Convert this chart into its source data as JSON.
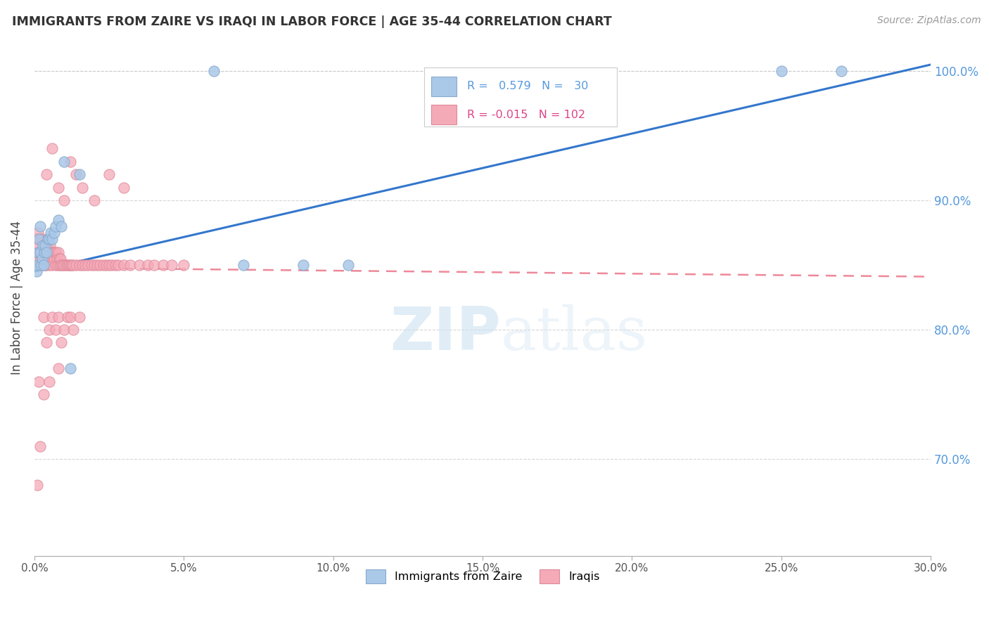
{
  "title": "IMMIGRANTS FROM ZAIRE VS IRAQI IN LABOR FORCE | AGE 35-44 CORRELATION CHART",
  "source": "Source: ZipAtlas.com",
  "ylabel": "In Labor Force | Age 35-44",
  "xlim": [
    0.0,
    0.3
  ],
  "ylim": [
    0.625,
    1.025
  ],
  "xtick_vals": [
    0.0,
    0.05,
    0.1,
    0.15,
    0.2,
    0.25,
    0.3
  ],
  "xtick_labels": [
    "0.0%",
    "5.0%",
    "10.0%",
    "15.0%",
    "20.0%",
    "25.0%",
    "30.0%"
  ],
  "ytick_vals": [
    0.7,
    0.8,
    0.9,
    1.0
  ],
  "ytick_labels_right": [
    "70.0%",
    "80.0%",
    "90.0%",
    "100.0%"
  ],
  "zaire_color": "#aac8e8",
  "iraqi_color": "#f5aab8",
  "zaire_edge_color": "#88aacc",
  "iraqi_edge_color": "#dd8899",
  "zaire_line_color": "#3377cc",
  "iraqi_line_color": "#ee8899",
  "right_axis_color": "#5599dd",
  "R_zaire": 0.579,
  "N_zaire": 30,
  "R_iraqi": -0.015,
  "N_iraqi": 102,
  "background_color": "#ffffff",
  "grid_color": "#cccccc",
  "watermark_color": "#ddeeff",
  "title_color": "#333333",
  "source_color": "#999999",
  "zaire_x": [
    0.0008,
    0.001,
    0.0012,
    0.0015,
    0.0018,
    0.002,
    0.0022,
    0.0025,
    0.0028,
    0.003,
    0.0032,
    0.0035,
    0.004,
    0.0045,
    0.005,
    0.0055,
    0.006,
    0.0065,
    0.007,
    0.008,
    0.009,
    0.01,
    0.012,
    0.015,
    0.06,
    0.07,
    0.09,
    0.105,
    0.25,
    0.27
  ],
  "zaire_y": [
    0.845,
    0.85,
    0.86,
    0.87,
    0.88,
    0.86,
    0.85,
    0.855,
    0.865,
    0.85,
    0.86,
    0.865,
    0.86,
    0.87,
    0.87,
    0.875,
    0.87,
    0.875,
    0.88,
    0.885,
    0.88,
    0.93,
    0.77,
    0.92,
    1.0,
    0.85,
    0.85,
    0.85,
    1.0,
    1.0
  ],
  "iraqi_x": [
    0.0005,
    0.0008,
    0.001,
    0.0012,
    0.0015,
    0.0015,
    0.0018,
    0.002,
    0.002,
    0.0022,
    0.0025,
    0.0025,
    0.0028,
    0.003,
    0.003,
    0.0032,
    0.0035,
    0.0035,
    0.0038,
    0.004,
    0.004,
    0.0042,
    0.0045,
    0.0045,
    0.0048,
    0.005,
    0.005,
    0.0052,
    0.0055,
    0.0058,
    0.006,
    0.0062,
    0.0065,
    0.0068,
    0.007,
    0.0072,
    0.0075,
    0.0078,
    0.008,
    0.0082,
    0.0085,
    0.0088,
    0.009,
    0.0095,
    0.01,
    0.0105,
    0.011,
    0.0115,
    0.012,
    0.0125,
    0.013,
    0.014,
    0.015,
    0.016,
    0.017,
    0.018,
    0.019,
    0.02,
    0.021,
    0.022,
    0.023,
    0.024,
    0.025,
    0.026,
    0.027,
    0.028,
    0.03,
    0.032,
    0.035,
    0.038,
    0.04,
    0.043,
    0.046,
    0.05,
    0.004,
    0.006,
    0.008,
    0.01,
    0.012,
    0.014,
    0.016,
    0.02,
    0.025,
    0.03,
    0.001,
    0.002,
    0.003,
    0.004,
    0.005,
    0.006,
    0.007,
    0.008,
    0.009,
    0.01,
    0.011,
    0.012,
    0.013,
    0.015,
    0.0015,
    0.003,
    0.005,
    0.008
  ],
  "iraqi_y": [
    0.855,
    0.87,
    0.86,
    0.875,
    0.85,
    0.865,
    0.86,
    0.85,
    0.87,
    0.855,
    0.86,
    0.87,
    0.85,
    0.86,
    0.865,
    0.855,
    0.85,
    0.865,
    0.86,
    0.85,
    0.86,
    0.865,
    0.855,
    0.87,
    0.86,
    0.85,
    0.86,
    0.865,
    0.855,
    0.86,
    0.85,
    0.86,
    0.855,
    0.86,
    0.85,
    0.86,
    0.855,
    0.85,
    0.86,
    0.855,
    0.85,
    0.855,
    0.85,
    0.85,
    0.85,
    0.85,
    0.85,
    0.85,
    0.85,
    0.85,
    0.85,
    0.85,
    0.85,
    0.85,
    0.85,
    0.85,
    0.85,
    0.85,
    0.85,
    0.85,
    0.85,
    0.85,
    0.85,
    0.85,
    0.85,
    0.85,
    0.85,
    0.85,
    0.85,
    0.85,
    0.85,
    0.85,
    0.85,
    0.85,
    0.92,
    0.94,
    0.91,
    0.9,
    0.93,
    0.92,
    0.91,
    0.9,
    0.92,
    0.91,
    0.68,
    0.71,
    0.81,
    0.79,
    0.8,
    0.81,
    0.8,
    0.81,
    0.79,
    0.8,
    0.81,
    0.81,
    0.8,
    0.81,
    0.76,
    0.75,
    0.76,
    0.77
  ]
}
